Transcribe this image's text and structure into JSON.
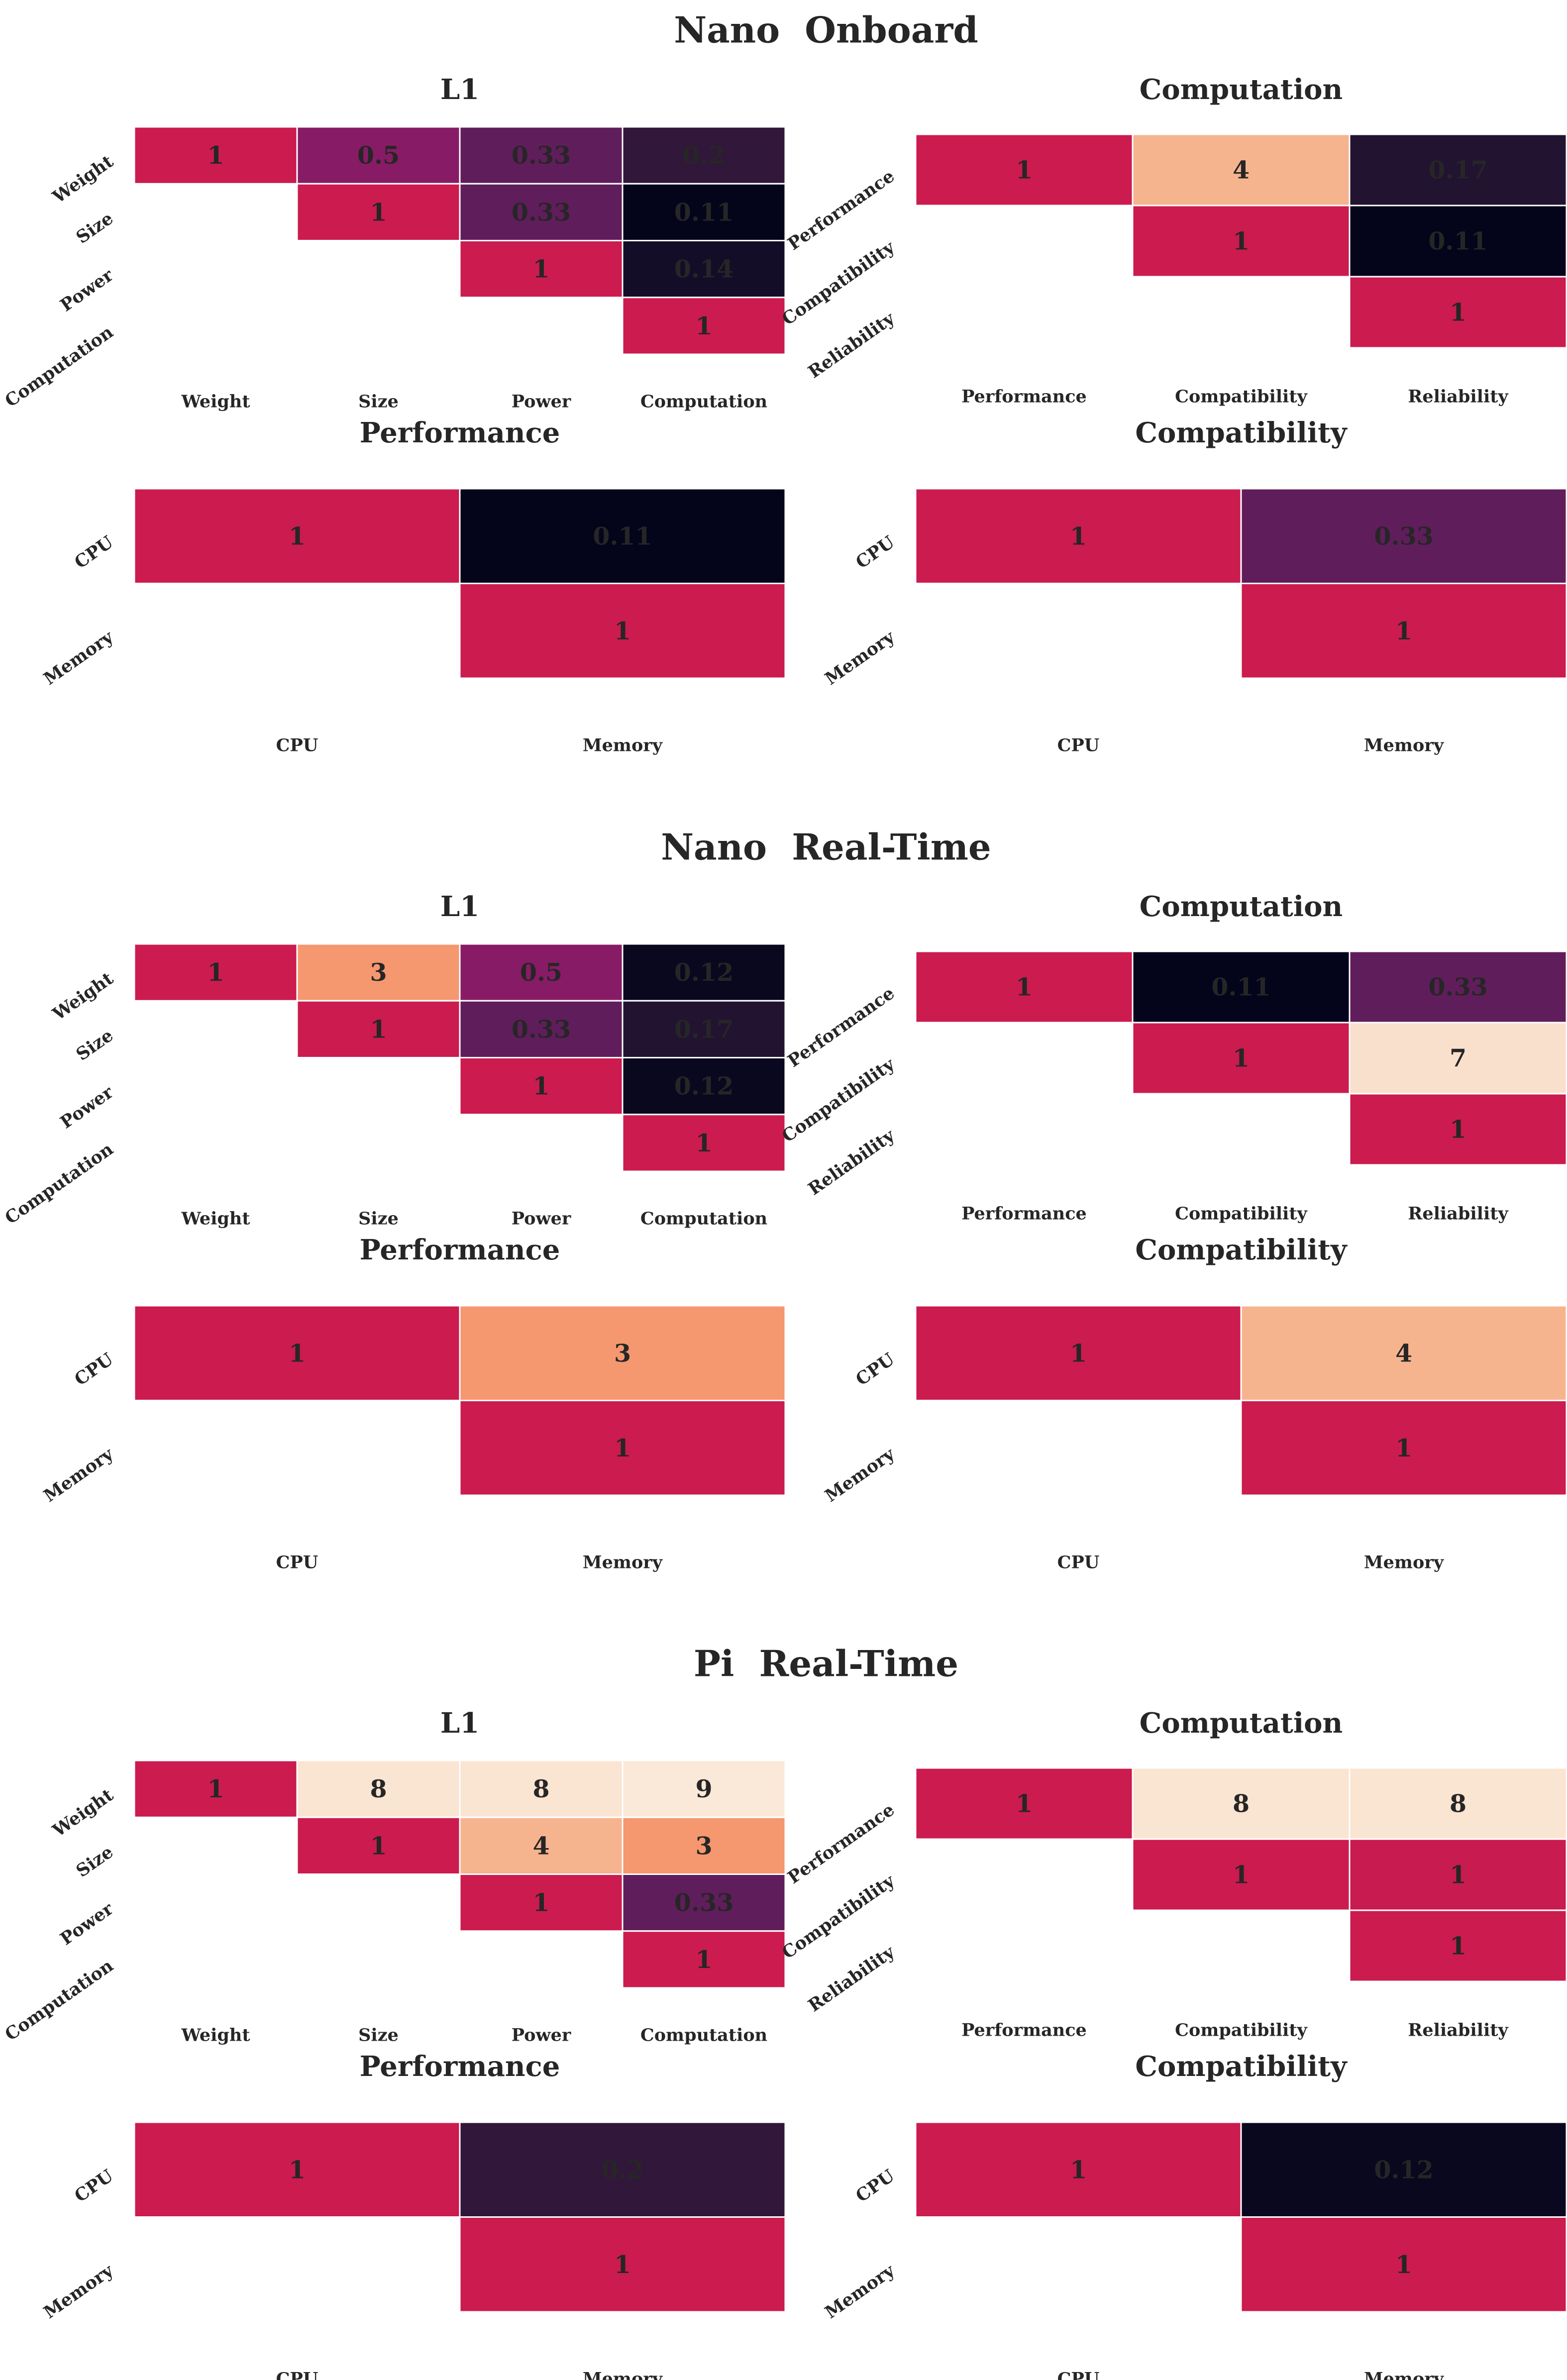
{
  "chart_data": [
    {
      "section": "Nano Onboard",
      "panels": [
        {
          "type": "heatmap",
          "title": "L1",
          "labels": [
            "Weight",
            "Size",
            "Power",
            "Computation"
          ],
          "values": [
            [
              1,
              0.5,
              0.33,
              0.2
            ],
            [
              null,
              1,
              0.33,
              0.11
            ],
            [
              null,
              null,
              1,
              0.14
            ],
            [
              null,
              null,
              null,
              1
            ]
          ]
        },
        {
          "type": "heatmap",
          "title": "Computation",
          "labels": [
            "Performance",
            "Compatibility",
            "Reliability"
          ],
          "values": [
            [
              1,
              4,
              0.17
            ],
            [
              null,
              1,
              0.11
            ],
            [
              null,
              null,
              1
            ]
          ]
        },
        {
          "type": "heatmap",
          "title": "Performance",
          "labels": [
            "CPU",
            "Memory"
          ],
          "values": [
            [
              1,
              0.11
            ],
            [
              null,
              1
            ]
          ]
        },
        {
          "type": "heatmap",
          "title": "Compatibility",
          "labels": [
            "CPU",
            "Memory"
          ],
          "values": [
            [
              1,
              0.33
            ],
            [
              null,
              1
            ]
          ]
        }
      ]
    },
    {
      "section": "Nano Real-Time",
      "panels": [
        {
          "type": "heatmap",
          "title": "L1",
          "labels": [
            "Weight",
            "Size",
            "Power",
            "Computation"
          ],
          "values": [
            [
              1,
              3,
              0.5,
              0.12
            ],
            [
              null,
              1,
              0.33,
              0.17
            ],
            [
              null,
              null,
              1,
              0.12
            ],
            [
              null,
              null,
              null,
              1
            ]
          ]
        },
        {
          "type": "heatmap",
          "title": "Computation",
          "labels": [
            "Performance",
            "Compatibility",
            "Reliability"
          ],
          "values": [
            [
              1,
              0.11,
              0.33
            ],
            [
              null,
              1,
              7
            ],
            [
              null,
              null,
              1
            ]
          ]
        },
        {
          "type": "heatmap",
          "title": "Performance",
          "labels": [
            "CPU",
            "Memory"
          ],
          "values": [
            [
              1,
              3
            ],
            [
              null,
              1
            ]
          ]
        },
        {
          "type": "heatmap",
          "title": "Compatibility",
          "labels": [
            "CPU",
            "Memory"
          ],
          "values": [
            [
              1,
              4
            ],
            [
              null,
              1
            ]
          ]
        }
      ]
    },
    {
      "section": "Pi Real-Time",
      "panels": [
        {
          "type": "heatmap",
          "title": "L1",
          "labels": [
            "Weight",
            "Size",
            "Power",
            "Computation"
          ],
          "values": [
            [
              1,
              8,
              8,
              9
            ],
            [
              null,
              1,
              4,
              3
            ],
            [
              null,
              null,
              1,
              0.33
            ],
            [
              null,
              null,
              null,
              1
            ]
          ]
        },
        {
          "type": "heatmap",
          "title": "Computation",
          "labels": [
            "Performance",
            "Compatibility",
            "Reliability"
          ],
          "values": [
            [
              1,
              8,
              8
            ],
            [
              null,
              1,
              1
            ],
            [
              null,
              null,
              1
            ]
          ]
        },
        {
          "type": "heatmap",
          "title": "Performance",
          "labels": [
            "CPU",
            "Memory"
          ],
          "values": [
            [
              1,
              0.2
            ],
            [
              null,
              1
            ]
          ]
        },
        {
          "type": "heatmap",
          "title": "Compatibility",
          "labels": [
            "CPU",
            "Memory"
          ],
          "values": [
            [
              1,
              0.12
            ],
            [
              null,
              1
            ]
          ]
        }
      ]
    }
  ],
  "colors": {
    "diagonal": "#cb1b4f",
    "scale": [
      "#03051a",
      "#221331",
      "#4c1d4b",
      "#781c6d",
      "#a11a5b",
      "#cb1b4f",
      "#ea4b3c",
      "#f4875e",
      "#f6b48e",
      "#f9dcc6",
      "#faebdd"
    ],
    "cell_border": "#ffffff",
    "text_dark": "#262626",
    "text_light": "#ffffff"
  }
}
